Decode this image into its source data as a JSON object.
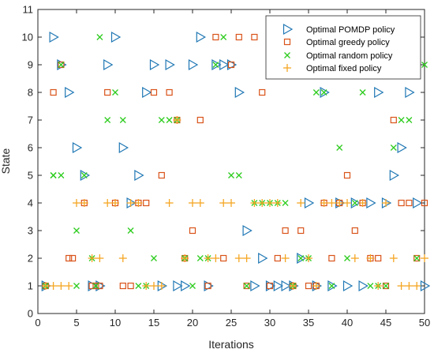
{
  "chart_data": {
    "type": "scatter",
    "xlabel": "Iterations",
    "ylabel": "State",
    "xlim": [
      0,
      50
    ],
    "ylim": [
      0,
      11
    ],
    "xticks": [
      "0",
      "5",
      "10",
      "15",
      "20",
      "25",
      "30",
      "35",
      "40",
      "45",
      "50"
    ],
    "yticks": [
      "0",
      "1",
      "2",
      "3",
      "4",
      "5",
      "6",
      "7",
      "8",
      "9",
      "10",
      "11"
    ],
    "grid": false,
    "legend_position": "top-right",
    "series": [
      {
        "name": "Optimal POMDP policy",
        "marker": "triangle-right",
        "color": "#1f77b4",
        "x": [
          1,
          2,
          3,
          4,
          5,
          6,
          7,
          8,
          9,
          10,
          11,
          12,
          13,
          14,
          15,
          16,
          17,
          18,
          19,
          20,
          21,
          22,
          23,
          24,
          25,
          26,
          27,
          28,
          29,
          30,
          31,
          32,
          33,
          34,
          35,
          36,
          37,
          38,
          39,
          40,
          41,
          42,
          43,
          44,
          45,
          46,
          47,
          48,
          49,
          50
        ],
        "y": [
          1,
          10,
          9,
          8,
          6,
          5,
          1,
          1,
          9,
          10,
          6,
          4,
          5,
          8,
          9,
          1,
          9,
          1,
          1,
          9,
          10,
          1,
          9,
          9,
          9,
          8,
          3,
          1,
          2,
          1,
          1,
          1,
          1,
          2,
          4,
          1,
          8,
          1,
          4,
          1,
          4,
          1,
          4,
          8,
          4,
          5,
          6,
          8,
          4,
          1
        ]
      },
      {
        "name": "Optimal greedy policy",
        "marker": "square",
        "color": "#d95319",
        "x": [
          1,
          2,
          3,
          4,
          4.5,
          6,
          7,
          7.5,
          8,
          9,
          10,
          11,
          12,
          13,
          14,
          15,
          16,
          17,
          18,
          19,
          20,
          21,
          22,
          23,
          24,
          25,
          26,
          27,
          28,
          29,
          30,
          31,
          32,
          33,
          34,
          35,
          36,
          37,
          38,
          39,
          40,
          41,
          42,
          43,
          44,
          45,
          46,
          47,
          48,
          49,
          50
        ],
        "y": [
          1,
          8,
          9,
          2,
          2,
          4,
          1,
          1,
          1,
          8,
          4,
          1,
          1,
          4,
          4,
          8,
          5,
          8,
          7,
          2,
          3,
          7,
          1,
          10,
          2,
          9,
          10,
          1,
          10,
          8,
          1,
          2,
          3,
          1,
          3,
          1,
          1,
          4,
          2,
          4,
          5,
          3,
          4,
          2,
          2,
          1,
          7,
          4,
          4,
          2,
          4
        ]
      },
      {
        "name": "Optimal random policy",
        "marker": "x",
        "color": "#2ecc1f",
        "x": [
          1,
          2,
          3,
          5,
          2,
          3,
          5,
          6,
          7,
          7.5,
          8,
          9,
          10,
          11,
          12,
          13,
          14,
          15,
          16,
          17,
          18,
          19,
          20,
          21,
          22,
          23,
          24,
          25,
          26,
          27,
          28,
          29,
          30,
          31,
          32,
          33,
          34,
          35,
          36,
          37,
          38,
          39,
          40,
          41,
          42,
          43,
          44,
          45,
          46,
          47,
          48,
          49,
          50
        ],
        "y": [
          1,
          5,
          5,
          1,
          5,
          9,
          3,
          5,
          2,
          1,
          10,
          7,
          8,
          7,
          3,
          1,
          1,
          2,
          7,
          7,
          7,
          2,
          1,
          2,
          2,
          9,
          10,
          5,
          5,
          1,
          4,
          4,
          4,
          4,
          4,
          1,
          2,
          2,
          8,
          8,
          1,
          6,
          2,
          4,
          8,
          1,
          1,
          1,
          6,
          7,
          7,
          2,
          9
        ]
      },
      {
        "name": "Optimal fixed policy",
        "marker": "plus",
        "color": "#f5a623",
        "x": [
          1,
          2,
          3,
          4,
          5,
          6,
          7,
          8,
          9,
          10,
          11,
          12,
          13,
          14,
          15,
          16,
          17,
          18,
          19,
          20,
          21,
          22,
          23,
          24,
          25,
          26,
          27,
          28,
          29,
          30,
          31,
          32,
          33,
          34,
          35,
          36,
          37,
          38,
          39,
          40,
          41,
          42,
          43,
          44,
          45,
          46,
          47,
          48,
          49,
          50
        ],
        "y": [
          1,
          1,
          1,
          1,
          4,
          4,
          2,
          2,
          4,
          4,
          2,
          4,
          4,
          1,
          1,
          1,
          4,
          7,
          2,
          4,
          4,
          2,
          2,
          4,
          4,
          2,
          2,
          4,
          4,
          4,
          4,
          2,
          1,
          4,
          2,
          1,
          4,
          4,
          4,
          4,
          2,
          4,
          2,
          1,
          4,
          2,
          1,
          1,
          1,
          2
        ]
      }
    ]
  }
}
